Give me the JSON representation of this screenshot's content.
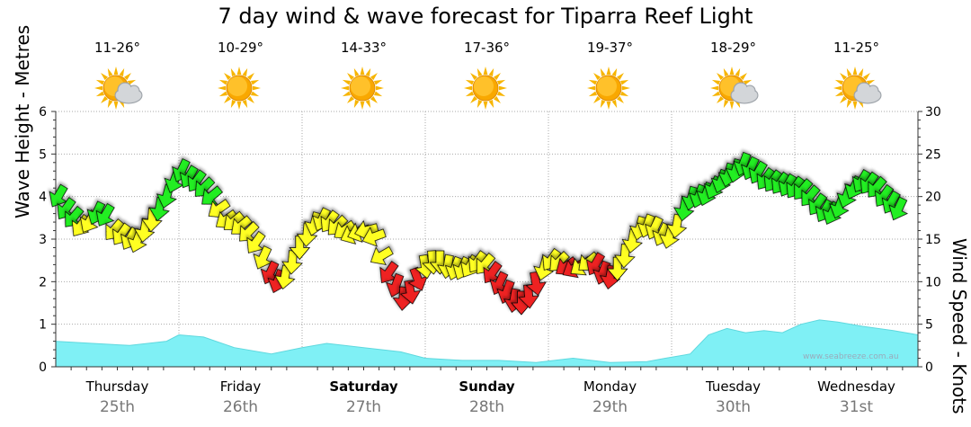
{
  "title": "7 day wind & wave forecast for Tiparra Reef Light",
  "watermark": "www.seabreeze.com.au",
  "days": [
    {
      "day": "Thursday",
      "date": "25th",
      "temp": "11-26°",
      "icon": "sun-cloud-icon",
      "bold": false
    },
    {
      "day": "Friday",
      "date": "26th",
      "temp": "10-29°",
      "icon": "sun-icon",
      "bold": false
    },
    {
      "day": "Saturday",
      "date": "27th",
      "temp": "14-33°",
      "icon": "sun-icon",
      "bold": true
    },
    {
      "day": "Sunday",
      "date": "28th",
      "temp": "17-36°",
      "icon": "sun-icon",
      "bold": true
    },
    {
      "day": "Monday",
      "date": "29th",
      "temp": "19-37°",
      "icon": "sun-icon",
      "bold": false
    },
    {
      "day": "Tuesday",
      "date": "30th",
      "temp": "18-29°",
      "icon": "sun-cloud-icon",
      "bold": false
    },
    {
      "day": "Wednesday",
      "date": "31st",
      "temp": "11-25°",
      "icon": "sun-cloud-icon",
      "bold": false
    }
  ],
  "chart_data": {
    "type": "area+wind-arrows",
    "title": "7 day wind & wave forecast for Tiparra Reef Light",
    "x_domain": [
      0,
      7
    ],
    "y_left": {
      "label": "Wave Height - Metres",
      "range": [
        0,
        6
      ],
      "ticks": [
        0,
        1,
        2,
        3,
        4,
        5,
        6
      ]
    },
    "y_right": {
      "label": "Wind Speed - Knots",
      "range": [
        0,
        30
      ],
      "ticks": [
        0,
        5,
        10,
        15,
        20,
        25,
        30
      ]
    },
    "colors": {
      "wave": "#7ff0f5",
      "green": "#22ee22",
      "yellow": "#ffff22",
      "red": "#ee2222",
      "grid": "#aaaaaa"
    },
    "wave_height": [
      [
        0,
        0.6
      ],
      [
        0.3,
        0.55
      ],
      [
        0.6,
        0.5
      ],
      [
        0.9,
        0.6
      ],
      [
        1.0,
        0.75
      ],
      [
        1.2,
        0.7
      ],
      [
        1.45,
        0.45
      ],
      [
        1.75,
        0.3
      ],
      [
        2.0,
        0.45
      ],
      [
        2.2,
        0.55
      ],
      [
        2.5,
        0.45
      ],
      [
        2.8,
        0.35
      ],
      [
        3.0,
        0.2
      ],
      [
        3.3,
        0.15
      ],
      [
        3.6,
        0.15
      ],
      [
        3.9,
        0.1
      ],
      [
        4.2,
        0.2
      ],
      [
        4.5,
        0.1
      ],
      [
        4.8,
        0.12
      ],
      [
        4.95,
        0.2
      ],
      [
        5.15,
        0.3
      ],
      [
        5.3,
        0.75
      ],
      [
        5.45,
        0.9
      ],
      [
        5.6,
        0.8
      ],
      [
        5.75,
        0.85
      ],
      [
        5.9,
        0.8
      ],
      [
        6.05,
        1.0
      ],
      [
        6.2,
        1.1
      ],
      [
        6.35,
        1.05
      ],
      [
        6.55,
        0.95
      ],
      [
        6.8,
        0.85
      ],
      [
        7.0,
        0.75
      ]
    ],
    "wind": [
      {
        "x": 0.02,
        "y": 4.0,
        "c": "green",
        "d": 210
      },
      {
        "x": 0.08,
        "y": 3.7,
        "c": "green",
        "d": 215
      },
      {
        "x": 0.14,
        "y": 3.5,
        "c": "green",
        "d": 220
      },
      {
        "x": 0.2,
        "y": 3.3,
        "c": "yellow",
        "d": 215
      },
      {
        "x": 0.27,
        "y": 3.4,
        "c": "yellow",
        "d": 210
      },
      {
        "x": 0.33,
        "y": 3.6,
        "c": "green",
        "d": 205
      },
      {
        "x": 0.4,
        "y": 3.55,
        "c": "green",
        "d": 210
      },
      {
        "x": 0.47,
        "y": 3.2,
        "c": "yellow",
        "d": 220
      },
      {
        "x": 0.53,
        "y": 3.1,
        "c": "yellow",
        "d": 215
      },
      {
        "x": 0.6,
        "y": 3.0,
        "c": "yellow",
        "d": 210
      },
      {
        "x": 0.66,
        "y": 2.95,
        "c": "yellow",
        "d": 200
      },
      {
        "x": 0.72,
        "y": 3.2,
        "c": "yellow",
        "d": 190
      },
      {
        "x": 0.78,
        "y": 3.45,
        "c": "yellow",
        "d": 185
      },
      {
        "x": 0.84,
        "y": 3.7,
        "c": "green",
        "d": 190
      },
      {
        "x": 0.9,
        "y": 4.0,
        "c": "green",
        "d": 195
      },
      {
        "x": 0.96,
        "y": 4.35,
        "c": "green",
        "d": 200
      },
      {
        "x": 1.02,
        "y": 4.6,
        "c": "green",
        "d": 205
      },
      {
        "x": 1.08,
        "y": 4.45,
        "c": "green",
        "d": 210
      },
      {
        "x": 1.14,
        "y": 4.35,
        "c": "green",
        "d": 215
      },
      {
        "x": 1.2,
        "y": 4.2,
        "c": "green",
        "d": 225
      },
      {
        "x": 1.26,
        "y": 4.0,
        "c": "green",
        "d": 230
      },
      {
        "x": 1.32,
        "y": 3.7,
        "c": "yellow",
        "d": 235
      },
      {
        "x": 1.38,
        "y": 3.45,
        "c": "yellow",
        "d": 235
      },
      {
        "x": 1.44,
        "y": 3.4,
        "c": "yellow",
        "d": 230
      },
      {
        "x": 1.5,
        "y": 3.3,
        "c": "yellow",
        "d": 230
      },
      {
        "x": 1.56,
        "y": 3.15,
        "c": "yellow",
        "d": 225
      },
      {
        "x": 1.62,
        "y": 2.9,
        "c": "yellow",
        "d": 215
      },
      {
        "x": 1.68,
        "y": 2.55,
        "c": "yellow",
        "d": 205
      },
      {
        "x": 1.74,
        "y": 2.2,
        "c": "red",
        "d": 205
      },
      {
        "x": 1.8,
        "y": 2.0,
        "c": "red",
        "d": 200
      },
      {
        "x": 1.86,
        "y": 2.1,
        "c": "yellow",
        "d": 190
      },
      {
        "x": 1.92,
        "y": 2.45,
        "c": "yellow",
        "d": 185
      },
      {
        "x": 1.98,
        "y": 2.8,
        "c": "yellow",
        "d": 180
      },
      {
        "x": 2.04,
        "y": 3.1,
        "c": "yellow",
        "d": 185
      },
      {
        "x": 2.1,
        "y": 3.35,
        "c": "yellow",
        "d": 195
      },
      {
        "x": 2.16,
        "y": 3.45,
        "c": "yellow",
        "d": 205
      },
      {
        "x": 2.22,
        "y": 3.4,
        "c": "yellow",
        "d": 215
      },
      {
        "x": 2.28,
        "y": 3.3,
        "c": "yellow",
        "d": 225
      },
      {
        "x": 2.34,
        "y": 3.2,
        "c": "yellow",
        "d": 235
      },
      {
        "x": 2.4,
        "y": 3.1,
        "c": "yellow",
        "d": 245
      },
      {
        "x": 2.46,
        "y": 3.15,
        "c": "yellow",
        "d": 250
      },
      {
        "x": 2.52,
        "y": 3.2,
        "c": "yellow",
        "d": 255
      },
      {
        "x": 2.58,
        "y": 3.05,
        "c": "yellow",
        "d": 250
      },
      {
        "x": 2.64,
        "y": 2.6,
        "c": "yellow",
        "d": 240
      },
      {
        "x": 2.7,
        "y": 2.2,
        "c": "red",
        "d": 215
      },
      {
        "x": 2.76,
        "y": 1.9,
        "c": "red",
        "d": 200
      },
      {
        "x": 2.82,
        "y": 1.6,
        "c": "red",
        "d": 185
      },
      {
        "x": 2.88,
        "y": 1.75,
        "c": "red",
        "d": 170
      },
      {
        "x": 2.94,
        "y": 2.05,
        "c": "red",
        "d": 160
      },
      {
        "x": 3.0,
        "y": 2.35,
        "c": "yellow",
        "d": 170
      },
      {
        "x": 3.06,
        "y": 2.45,
        "c": "yellow",
        "d": 175
      },
      {
        "x": 3.12,
        "y": 2.45,
        "c": "yellow",
        "d": 180
      },
      {
        "x": 3.18,
        "y": 2.35,
        "c": "yellow",
        "d": 190
      },
      {
        "x": 3.24,
        "y": 2.3,
        "c": "yellow",
        "d": 200
      },
      {
        "x": 3.3,
        "y": 2.3,
        "c": "yellow",
        "d": 205
      },
      {
        "x": 3.36,
        "y": 2.35,
        "c": "yellow",
        "d": 210
      },
      {
        "x": 3.42,
        "y": 2.45,
        "c": "yellow",
        "d": 215
      },
      {
        "x": 3.48,
        "y": 2.4,
        "c": "yellow",
        "d": 220
      },
      {
        "x": 3.54,
        "y": 2.2,
        "c": "red",
        "d": 215
      },
      {
        "x": 3.6,
        "y": 1.95,
        "c": "red",
        "d": 205
      },
      {
        "x": 3.66,
        "y": 1.75,
        "c": "red",
        "d": 200
      },
      {
        "x": 3.72,
        "y": 1.55,
        "c": "red",
        "d": 190
      },
      {
        "x": 3.78,
        "y": 1.5,
        "c": "red",
        "d": 180
      },
      {
        "x": 3.84,
        "y": 1.65,
        "c": "red",
        "d": 175
      },
      {
        "x": 3.9,
        "y": 1.95,
        "c": "red",
        "d": 170
      },
      {
        "x": 3.96,
        "y": 2.3,
        "c": "yellow",
        "d": 195
      },
      {
        "x": 4.02,
        "y": 2.5,
        "c": "yellow",
        "d": 215
      },
      {
        "x": 4.08,
        "y": 2.45,
        "c": "yellow",
        "d": 225
      },
      {
        "x": 4.14,
        "y": 2.35,
        "c": "red",
        "d": 235
      },
      {
        "x": 4.2,
        "y": 2.3,
        "c": "red",
        "d": 240
      },
      {
        "x": 4.26,
        "y": 2.35,
        "c": "yellow",
        "d": 235
      },
      {
        "x": 4.32,
        "y": 2.45,
        "c": "yellow",
        "d": 230
      },
      {
        "x": 4.38,
        "y": 2.4,
        "c": "red",
        "d": 210
      },
      {
        "x": 4.44,
        "y": 2.2,
        "c": "red",
        "d": 200
      },
      {
        "x": 4.5,
        "y": 2.1,
        "c": "red",
        "d": 190
      },
      {
        "x": 4.56,
        "y": 2.3,
        "c": "yellow",
        "d": 180
      },
      {
        "x": 4.62,
        "y": 2.6,
        "c": "yellow",
        "d": 185
      },
      {
        "x": 4.68,
        "y": 2.95,
        "c": "yellow",
        "d": 190
      },
      {
        "x": 4.74,
        "y": 3.25,
        "c": "yellow",
        "d": 195
      },
      {
        "x": 4.8,
        "y": 3.3,
        "c": "yellow",
        "d": 200
      },
      {
        "x": 4.86,
        "y": 3.25,
        "c": "yellow",
        "d": 205
      },
      {
        "x": 4.92,
        "y": 3.1,
        "c": "yellow",
        "d": 205
      },
      {
        "x": 4.98,
        "y": 3.05,
        "c": "yellow",
        "d": 195
      },
      {
        "x": 5.04,
        "y": 3.3,
        "c": "yellow",
        "d": 190
      },
      {
        "x": 5.1,
        "y": 3.7,
        "c": "green",
        "d": 190
      },
      {
        "x": 5.16,
        "y": 3.95,
        "c": "green",
        "d": 195
      },
      {
        "x": 5.22,
        "y": 4.0,
        "c": "green",
        "d": 200
      },
      {
        "x": 5.28,
        "y": 4.05,
        "c": "green",
        "d": 200
      },
      {
        "x": 5.34,
        "y": 4.2,
        "c": "green",
        "d": 205
      },
      {
        "x": 5.4,
        "y": 4.35,
        "c": "green",
        "d": 200
      },
      {
        "x": 5.46,
        "y": 4.5,
        "c": "green",
        "d": 195
      },
      {
        "x": 5.52,
        "y": 4.6,
        "c": "green",
        "d": 195
      },
      {
        "x": 5.58,
        "y": 4.75,
        "c": "green",
        "d": 200
      },
      {
        "x": 5.64,
        "y": 4.65,
        "c": "green",
        "d": 205
      },
      {
        "x": 5.7,
        "y": 4.55,
        "c": "green",
        "d": 210
      },
      {
        "x": 5.76,
        "y": 4.4,
        "c": "green",
        "d": 215
      },
      {
        "x": 5.82,
        "y": 4.35,
        "c": "green",
        "d": 215
      },
      {
        "x": 5.88,
        "y": 4.3,
        "c": "green",
        "d": 215
      },
      {
        "x": 5.94,
        "y": 4.25,
        "c": "green",
        "d": 210
      },
      {
        "x": 6.0,
        "y": 4.2,
        "c": "green",
        "d": 215
      },
      {
        "x": 6.06,
        "y": 4.15,
        "c": "green",
        "d": 220
      },
      {
        "x": 6.12,
        "y": 4.0,
        "c": "green",
        "d": 220
      },
      {
        "x": 6.18,
        "y": 3.8,
        "c": "green",
        "d": 215
      },
      {
        "x": 6.24,
        "y": 3.65,
        "c": "green",
        "d": 210
      },
      {
        "x": 6.3,
        "y": 3.6,
        "c": "green",
        "d": 205
      },
      {
        "x": 6.36,
        "y": 3.75,
        "c": "green",
        "d": 200
      },
      {
        "x": 6.42,
        "y": 4.0,
        "c": "green",
        "d": 200
      },
      {
        "x": 6.48,
        "y": 4.2,
        "c": "green",
        "d": 205
      },
      {
        "x": 6.54,
        "y": 4.35,
        "c": "green",
        "d": 210
      },
      {
        "x": 6.6,
        "y": 4.3,
        "c": "green",
        "d": 215
      },
      {
        "x": 6.66,
        "y": 4.2,
        "c": "green",
        "d": 220
      },
      {
        "x": 6.72,
        "y": 4.0,
        "c": "green",
        "d": 215
      },
      {
        "x": 6.78,
        "y": 3.85,
        "c": "green",
        "d": 210
      },
      {
        "x": 6.84,
        "y": 3.7,
        "c": "green",
        "d": 205
      }
    ]
  }
}
